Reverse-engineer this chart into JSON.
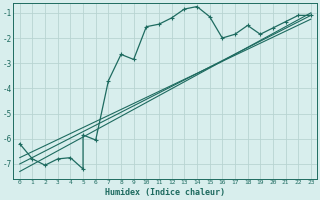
{
  "xlabel": "Humidex (Indice chaleur)",
  "xlim": [
    -0.5,
    23.5
  ],
  "ylim": [
    -7.6,
    -0.6
  ],
  "yticks": [
    -7,
    -6,
    -5,
    -4,
    -3,
    -2,
    -1
  ],
  "xticks": [
    0,
    1,
    2,
    3,
    4,
    5,
    6,
    7,
    8,
    9,
    10,
    11,
    12,
    13,
    14,
    15,
    16,
    17,
    18,
    19,
    20,
    21,
    22,
    23
  ],
  "bg_color": "#d8eeed",
  "grid_color": "#b8d4d2",
  "line_color": "#1e6b60",
  "curve_x": [
    0,
    1,
    2,
    3,
    4,
    5,
    5,
    6,
    7,
    8,
    9,
    10,
    11,
    12,
    13,
    14,
    15,
    16,
    17,
    18,
    19,
    20,
    21,
    22,
    23
  ],
  "curve_y": [
    -6.2,
    -6.8,
    -7.05,
    -6.8,
    -6.75,
    -7.2,
    -5.85,
    -6.05,
    -3.7,
    -2.65,
    -2.85,
    -1.55,
    -1.45,
    -1.2,
    -0.85,
    -0.75,
    -1.15,
    -2.0,
    -1.85,
    -1.5,
    -1.85,
    -1.6,
    -1.35,
    -1.1,
    -1.1
  ],
  "line1_x": [
    0,
    23
  ],
  "line1_y": [
    -7.3,
    -1.0
  ],
  "line2_x": [
    0,
    23
  ],
  "line2_y": [
    -6.75,
    -1.25
  ],
  "line3_x": [
    0,
    23
  ],
  "line3_y": [
    -7.0,
    -1.1
  ]
}
